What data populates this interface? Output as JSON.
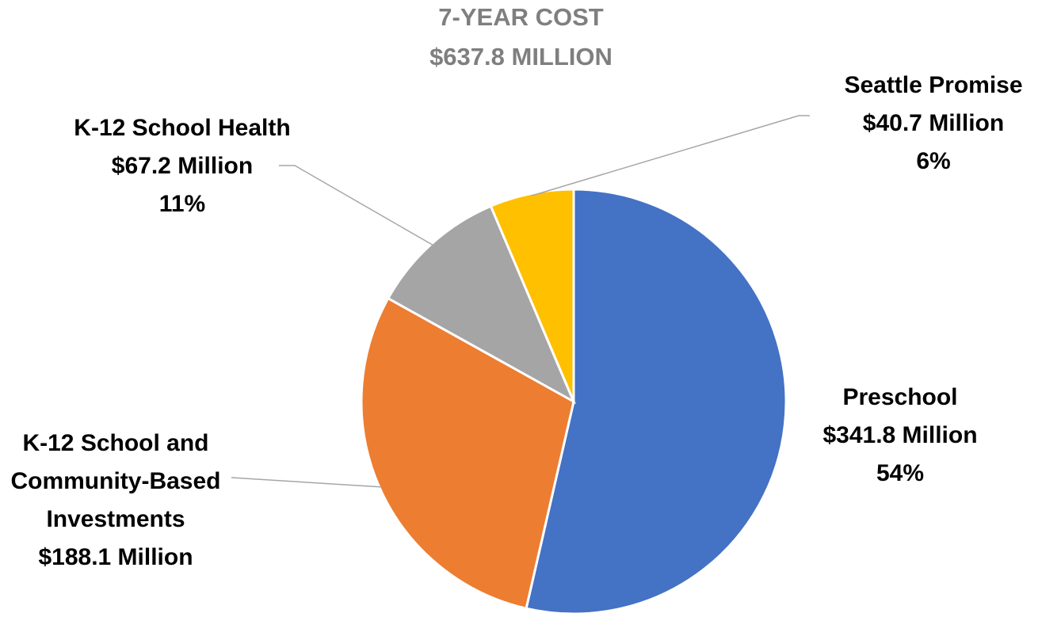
{
  "chart_data": {
    "type": "pie",
    "title": [
      "7-YEAR COST",
      "$637.8 MILLION"
    ],
    "slices": [
      {
        "name": "Preschool",
        "amount": "$341.8 Million",
        "percent_label": "54%",
        "value": 341.8,
        "color": "#4472c4"
      },
      {
        "name": "K-12 School and Community-Based Investments",
        "name_lines": [
          "K-12 School and",
          "Community-Based",
          "Investments"
        ],
        "amount": "$188.1 Million",
        "percent_label": "",
        "value": 188.1,
        "color": "#ed7d31"
      },
      {
        "name": "K-12 School Health",
        "amount": "$67.2 Million",
        "percent_label": "11%",
        "value": 67.2,
        "color": "#a5a5a5"
      },
      {
        "name": "Seattle Promise",
        "amount": "$40.7 Million",
        "percent_label": "6%",
        "value": 40.7,
        "color": "#ffc000"
      }
    ]
  }
}
